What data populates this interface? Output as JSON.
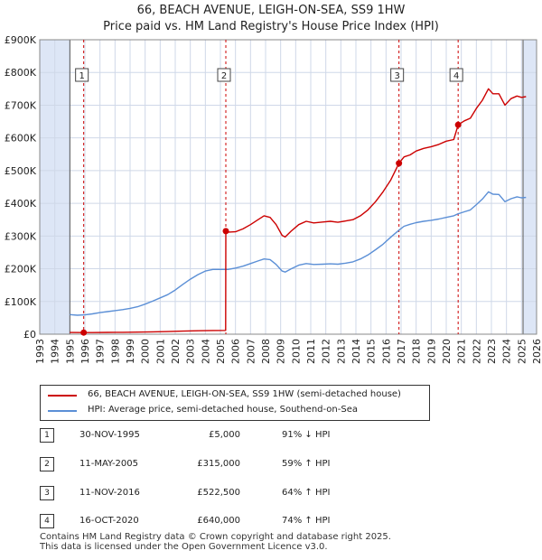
{
  "title": {
    "line1": "66, BEACH AVENUE, LEIGH-ON-SEA, SS9 1HW",
    "line2": "Price paid vs. HM Land Registry's House Price Index (HPI)"
  },
  "colors": {
    "property": "#cc0000",
    "hpi": "#5b8fd6",
    "shade": "#dde6f6",
    "grid": "#cfd8e8",
    "marker_line": "#cc0000"
  },
  "chart_data": {
    "type": "line",
    "title": "Price paid vs. HM Land Registry's House Price Index (HPI)",
    "xlim": [
      1993,
      2026
    ],
    "ylim": [
      0,
      900000
    ],
    "x_ticks": [
      "1993",
      "1994",
      "1995",
      "1996",
      "1997",
      "1998",
      "1999",
      "2000",
      "2001",
      "2002",
      "2003",
      "2004",
      "2005",
      "2006",
      "2007",
      "2008",
      "2009",
      "2010",
      "2011",
      "2012",
      "2013",
      "2014",
      "2015",
      "2016",
      "2017",
      "2018",
      "2019",
      "2020",
      "2021",
      "2022",
      "2023",
      "2024",
      "2025",
      "2026"
    ],
    "y_ticks": [
      {
        "value": 0,
        "label": "£0"
      },
      {
        "value": 100000,
        "label": "£100K"
      },
      {
        "value": 200000,
        "label": "£200K"
      },
      {
        "value": 300000,
        "label": "£300K"
      },
      {
        "value": 400000,
        "label": "£400K"
      },
      {
        "value": 500000,
        "label": "£500K"
      },
      {
        "value": 600000,
        "label": "£600K"
      },
      {
        "value": 700000,
        "label": "£700K"
      },
      {
        "value": 800000,
        "label": "£800K"
      },
      {
        "value": 900000,
        "label": "£900K"
      }
    ],
    "shaded_ranges": [
      [
        1993,
        1995.0
      ],
      [
        2025.1,
        2026
      ]
    ],
    "series": [
      {
        "name": "66, BEACH AVENUE, LEIGH-ON-SEA, SS9 1HW (semi-detached house)",
        "color": "#cc0000",
        "points": [
          [
            1995.0,
            5200
          ],
          [
            1995.92,
            5000
          ],
          [
            1996.5,
            5100
          ],
          [
            1997.5,
            5400
          ],
          [
            1998.5,
            5800
          ],
          [
            1999.5,
            6300
          ],
          [
            2000.5,
            7100
          ],
          [
            2001.5,
            8100
          ],
          [
            2002.5,
            9300
          ],
          [
            2003.5,
            10500
          ],
          [
            2004.5,
            11200
          ],
          [
            2005.35,
            11500
          ],
          [
            2005.36,
            315000
          ],
          [
            2005.5,
            312000
          ],
          [
            2006.0,
            313000
          ],
          [
            2006.5,
            322000
          ],
          [
            2007.0,
            335000
          ],
          [
            2007.5,
            350000
          ],
          [
            2007.9,
            362000
          ],
          [
            2008.3,
            357000
          ],
          [
            2008.7,
            335000
          ],
          [
            2009.1,
            302000
          ],
          [
            2009.3,
            297000
          ],
          [
            2009.7,
            315000
          ],
          [
            2010.2,
            335000
          ],
          [
            2010.7,
            345000
          ],
          [
            2011.2,
            340000
          ],
          [
            2011.8,
            343000
          ],
          [
            2012.3,
            345000
          ],
          [
            2012.8,
            342000
          ],
          [
            2013.3,
            346000
          ],
          [
            2013.8,
            350000
          ],
          [
            2014.3,
            362000
          ],
          [
            2014.8,
            380000
          ],
          [
            2015.3,
            405000
          ],
          [
            2015.8,
            435000
          ],
          [
            2016.3,
            470000
          ],
          [
            2016.86,
            522500
          ],
          [
            2017.2,
            542000
          ],
          [
            2017.6,
            548000
          ],
          [
            2018.0,
            560000
          ],
          [
            2018.5,
            568000
          ],
          [
            2019.0,
            573000
          ],
          [
            2019.5,
            580000
          ],
          [
            2020.0,
            590000
          ],
          [
            2020.5,
            595000
          ],
          [
            2020.79,
            640000
          ],
          [
            2021.2,
            652000
          ],
          [
            2021.6,
            660000
          ],
          [
            2022.0,
            690000
          ],
          [
            2022.4,
            715000
          ],
          [
            2022.8,
            750000
          ],
          [
            2023.1,
            735000
          ],
          [
            2023.5,
            735000
          ],
          [
            2023.9,
            700000
          ],
          [
            2024.3,
            720000
          ],
          [
            2024.7,
            728000
          ],
          [
            2025.0,
            724000
          ],
          [
            2025.3,
            726000
          ]
        ]
      },
      {
        "name": "HPI: Average price, semi-detached house, Southend-on-Sea",
        "color": "#5b8fd6",
        "points": [
          [
            1995.0,
            60000
          ],
          [
            1995.5,
            58000
          ],
          [
            1996.0,
            59000
          ],
          [
            1996.5,
            62000
          ],
          [
            1997.0,
            66000
          ],
          [
            1997.5,
            69000
          ],
          [
            1998.0,
            72000
          ],
          [
            1998.5,
            75000
          ],
          [
            1999.0,
            79000
          ],
          [
            1999.5,
            84000
          ],
          [
            2000.0,
            92000
          ],
          [
            2000.5,
            101000
          ],
          [
            2001.0,
            111000
          ],
          [
            2001.5,
            121000
          ],
          [
            2002.0,
            135000
          ],
          [
            2002.5,
            152000
          ],
          [
            2003.0,
            168000
          ],
          [
            2003.5,
            182000
          ],
          [
            2004.0,
            193000
          ],
          [
            2004.5,
            198000
          ],
          [
            2005.0,
            198000
          ],
          [
            2005.5,
            198000
          ],
          [
            2006.0,
            202000
          ],
          [
            2006.5,
            208000
          ],
          [
            2007.0,
            216000
          ],
          [
            2007.5,
            224000
          ],
          [
            2007.9,
            230000
          ],
          [
            2008.3,
            228000
          ],
          [
            2008.7,
            213000
          ],
          [
            2009.1,
            193000
          ],
          [
            2009.3,
            190000
          ],
          [
            2009.7,
            200000
          ],
          [
            2010.2,
            211000
          ],
          [
            2010.7,
            216000
          ],
          [
            2011.2,
            213000
          ],
          [
            2011.8,
            214000
          ],
          [
            2012.3,
            215000
          ],
          [
            2012.8,
            214000
          ],
          [
            2013.3,
            217000
          ],
          [
            2013.8,
            221000
          ],
          [
            2014.3,
            230000
          ],
          [
            2014.8,
            242000
          ],
          [
            2015.3,
            258000
          ],
          [
            2015.8,
            275000
          ],
          [
            2016.3,
            296000
          ],
          [
            2016.86,
            318000
          ],
          [
            2017.2,
            330000
          ],
          [
            2017.6,
            336000
          ],
          [
            2018.0,
            341000
          ],
          [
            2018.5,
            345000
          ],
          [
            2019.0,
            348000
          ],
          [
            2019.5,
            352000
          ],
          [
            2020.0,
            357000
          ],
          [
            2020.5,
            362000
          ],
          [
            2020.79,
            368000
          ],
          [
            2021.2,
            374000
          ],
          [
            2021.6,
            380000
          ],
          [
            2022.0,
            396000
          ],
          [
            2022.4,
            413000
          ],
          [
            2022.8,
            435000
          ],
          [
            2023.1,
            428000
          ],
          [
            2023.5,
            427000
          ],
          [
            2023.9,
            405000
          ],
          [
            2024.3,
            414000
          ],
          [
            2024.7,
            420000
          ],
          [
            2025.0,
            417000
          ],
          [
            2025.3,
            418000
          ]
        ]
      }
    ],
    "sales": [
      {
        "id": "1",
        "x": 1995.92,
        "value": 5000
      },
      {
        "id": "2",
        "x": 2005.36,
        "value": 315000
      },
      {
        "id": "3",
        "x": 2016.86,
        "value": 522500
      },
      {
        "id": "4",
        "x": 2020.79,
        "value": 640000
      }
    ]
  },
  "legend": {
    "property_label": "66, BEACH AVENUE, LEIGH-ON-SEA, SS9 1HW (semi-detached house)",
    "hpi_label": "HPI: Average price, semi-detached house, Southend-on-Sea"
  },
  "sales_table": [
    {
      "num": "1",
      "date": "30-NOV-1995",
      "price": "£5,000",
      "hpi": "91% ↓ HPI"
    },
    {
      "num": "2",
      "date": "11-MAY-2005",
      "price": "£315,000",
      "hpi": "59% ↑ HPI"
    },
    {
      "num": "3",
      "date": "11-NOV-2016",
      "price": "£522,500",
      "hpi": "64% ↑ HPI"
    },
    {
      "num": "4",
      "date": "16-OCT-2020",
      "price": "£640,000",
      "hpi": "74% ↑ HPI"
    }
  ],
  "footer": {
    "line1": "Contains HM Land Registry data © Crown copyright and database right 2025.",
    "line2": "This data is licensed under the Open Government Licence v3.0."
  }
}
